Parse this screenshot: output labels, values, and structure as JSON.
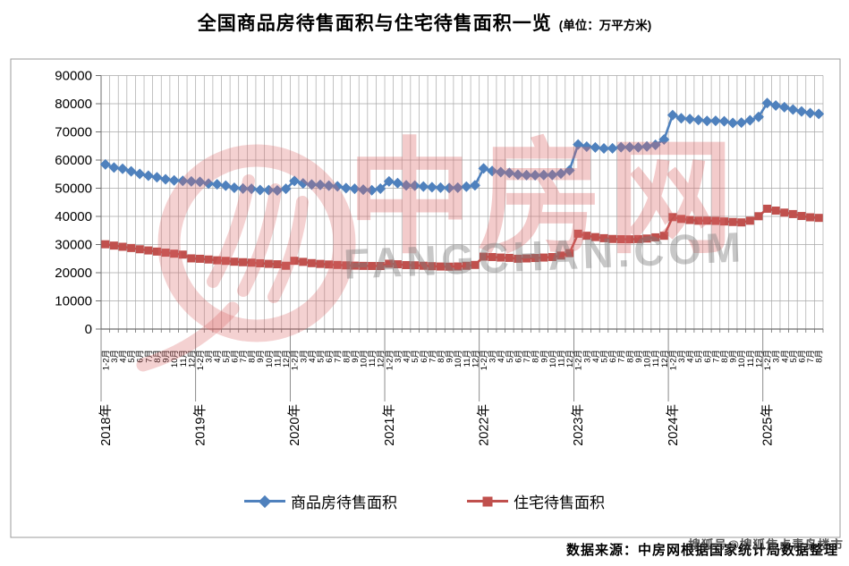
{
  "title": {
    "main": "全国商品房待售面积与住宅待售面积一览",
    "unit": "(单位：万平方米)"
  },
  "source_note": "数据来源：中房网根据国家统计局数据整理",
  "watermark": {
    "logo_text": "中房网",
    "domain_text": "FANGCHAN.COM",
    "sohu_text": "搜狐号@搜狐焦点青岛楼市"
  },
  "colors": {
    "commercial_series": "#4F81BD",
    "residential_series": "#C0504D",
    "gridline": "#a8a8a8",
    "axis": "#6e6e6e",
    "watermark_pink": "rgba(219,104,104,0.34)"
  },
  "chart_data": {
    "type": "line",
    "title": "全国商品房待售面积与住宅待售面积一览",
    "unit": "万平方米",
    "xlabel": "",
    "ylabel": "",
    "ylim": [
      0,
      90000
    ],
    "ytick_step": 10000,
    "grid": true,
    "legend_position": "bottom",
    "categories": [
      "2018年1-2月",
      "3月",
      "4月",
      "5月",
      "6月",
      "7月",
      "8月",
      "9月",
      "10月",
      "11月",
      "12月",
      "2019年1-2月",
      "3月",
      "4月",
      "5月",
      "6月",
      "7月",
      "8月",
      "9月",
      "10月",
      "11月",
      "12月",
      "2020年1-2月",
      "3月",
      "4月",
      "5月",
      "6月",
      "7月",
      "8月",
      "9月",
      "10月",
      "11月",
      "12月",
      "2021年1-2月",
      "3月",
      "4月",
      "5月",
      "6月",
      "7月",
      "8月",
      "9月",
      "10月",
      "11月",
      "12月",
      "2022年1-2月",
      "3月",
      "4月",
      "5月",
      "6月",
      "7月",
      "8月",
      "9月",
      "10月",
      "11月",
      "12月",
      "2023年1-2月",
      "3月",
      "4月",
      "5月",
      "6月",
      "7月",
      "8月",
      "9月",
      "10月",
      "11月",
      "12月",
      "2024年1-2月",
      "3月",
      "4月",
      "5月",
      "6月",
      "7月",
      "8月",
      "9月",
      "10月",
      "11月",
      "12月",
      "2025年1-2月",
      "3月",
      "4月",
      "5月",
      "6月",
      "7月",
      "8月"
    ],
    "series": [
      {
        "name": "商品房待售面积",
        "color": "#4F81BD",
        "marker": "diamond",
        "values": [
          58468,
          57329,
          56898,
          56010,
          55083,
          54428,
          53873,
          53191,
          52789,
          52627,
          52414,
          52251,
          51646,
          51380,
          50928,
          50162,
          49876,
          49784,
          49346,
          49323,
          49221,
          49821,
          52563,
          51726,
          51312,
          51184,
          50918,
          50691,
          50052,
          49816,
          49492,
          49287,
          49850,
          52425,
          51835,
          51021,
          50928,
          50583,
          50372,
          50191,
          50085,
          50203,
          50553,
          51023,
          57026,
          56113,
          55734,
          55433,
          54784,
          54656,
          54605,
          54694,
          54734,
          55203,
          56366,
          65528,
          64770,
          64487,
          64120,
          64159,
          64564,
          64570,
          64537,
          64835,
          65385,
          67295,
          75969,
          74833,
          74553,
          74256,
          73894,
          73926,
          73784,
          73177,
          73286,
          74122,
          75327,
          80224,
          79378,
          78764,
          77941,
          77246,
          76686,
          76399
        ]
      },
      {
        "name": "住宅待售面积",
        "color": "#C0504D",
        "marker": "square",
        "values": [
          30100,
          29635,
          29210,
          28770,
          28330,
          27910,
          27510,
          27120,
          26760,
          26430,
          25091,
          24953,
          24694,
          24404,
          24203,
          23912,
          23732,
          23565,
          23350,
          23142,
          22997,
          22473,
          24224,
          23844,
          23404,
          23121,
          22923,
          22764,
          22616,
          22511,
          22430,
          22399,
          22379,
          23178,
          22999,
          22706,
          22634,
          22472,
          22316,
          22204,
          22148,
          22215,
          22464,
          22761,
          25699,
          25564,
          25384,
          25270,
          24967,
          25071,
          25222,
          25384,
          25564,
          26089,
          26947,
          33852,
          33129,
          32640,
          32257,
          31983,
          31890,
          31862,
          31939,
          32127,
          32563,
          33119,
          39738,
          39088,
          38714,
          38464,
          38478,
          38402,
          38193,
          38012,
          37862,
          38462,
          40057,
          42717,
          42054,
          41336,
          40821,
          40139,
          39684,
          39469
        ]
      }
    ]
  }
}
